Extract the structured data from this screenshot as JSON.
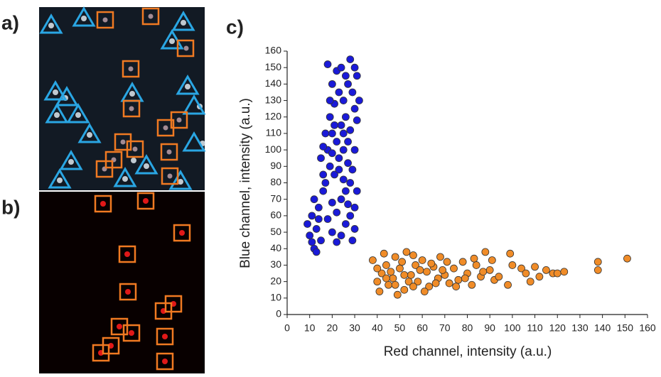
{
  "panel_labels": [
    "a)",
    "b)",
    "c)"
  ],
  "chart_data": {
    "type": "scatter",
    "x_label": "Red channel, intensity (a.u.)",
    "y_label": "Blue channel, intensity (a.u.)",
    "xlim": [
      0,
      160
    ],
    "ylim": [
      0,
      160
    ],
    "xticks": [
      0,
      10,
      20,
      30,
      40,
      50,
      60,
      70,
      80,
      90,
      100,
      110,
      120,
      130,
      140,
      150,
      160
    ],
    "yticks": [
      0,
      10,
      20,
      30,
      40,
      50,
      60,
      70,
      80,
      90,
      100,
      110,
      120,
      130,
      140,
      150,
      160
    ],
    "series": [
      {
        "color": "#1a1ad8",
        "x": [
          12,
          10,
          9,
          11,
          13,
          15,
          14,
          12,
          16,
          18,
          20,
          22,
          24,
          26,
          28,
          30,
          29,
          17,
          19,
          21,
          23,
          25,
          27,
          18,
          20,
          22,
          24,
          26,
          28,
          30,
          31,
          19,
          21,
          23,
          25,
          27,
          29,
          31,
          20,
          22,
          18,
          24,
          28,
          30,
          26,
          32,
          30,
          28,
          26,
          24,
          22,
          20,
          16,
          15,
          17,
          19,
          21,
          23,
          25,
          27,
          29,
          31,
          30,
          27,
          14,
          11,
          13,
          16,
          20,
          25
        ],
        "values": [
          40,
          48,
          55,
          60,
          52,
          45,
          65,
          70,
          75,
          58,
          50,
          44,
          48,
          55,
          60,
          52,
          45,
          80,
          90,
          85,
          95,
          100,
          92,
          100,
          110,
          105,
          115,
          120,
          112,
          125,
          118,
          120,
          128,
          135,
          130,
          140,
          135,
          145,
          140,
          148,
          152,
          150,
          155,
          150,
          145,
          130,
          100,
          80,
          75,
          70,
          62,
          68,
          85,
          95,
          110,
          130,
          115,
          88,
          82,
          105,
          88,
          75,
          65,
          67,
          58,
          44,
          38,
          102,
          98,
          110
        ]
      },
      {
        "color": "#f08c28",
        "x": [
          40,
          42,
          44,
          45,
          47,
          48,
          50,
          52,
          53,
          55,
          57,
          58,
          60,
          62,
          63,
          65,
          67,
          68,
          70,
          72,
          74,
          76,
          78,
          80,
          82,
          84,
          86,
          88,
          90,
          92,
          98,
          99,
          100,
          104,
          106,
          108,
          110,
          112,
          115,
          118,
          120,
          123,
          138,
          138,
          151,
          38,
          41,
          43,
          46,
          49,
          51,
          54,
          56,
          59,
          61,
          64,
          66,
          69,
          71,
          75,
          79,
          83,
          87,
          91,
          94,
          40,
          44,
          48,
          52,
          56
        ],
        "values": [
          20,
          25,
          30,
          18,
          22,
          35,
          28,
          15,
          38,
          24,
          30,
          20,
          33,
          26,
          17,
          29,
          22,
          35,
          24,
          19,
          28,
          21,
          32,
          25,
          18,
          30,
          23,
          38,
          27,
          21,
          18,
          37,
          30,
          28,
          25,
          20,
          29,
          23,
          27,
          25,
          25,
          26,
          27,
          32,
          34,
          33,
          14,
          37,
          26,
          12,
          32,
          20,
          36,
          27,
          14,
          31,
          19,
          27,
          32,
          17,
          22,
          34,
          26,
          33,
          23,
          28,
          22,
          18,
          24,
          17
        ]
      }
    ]
  }
}
